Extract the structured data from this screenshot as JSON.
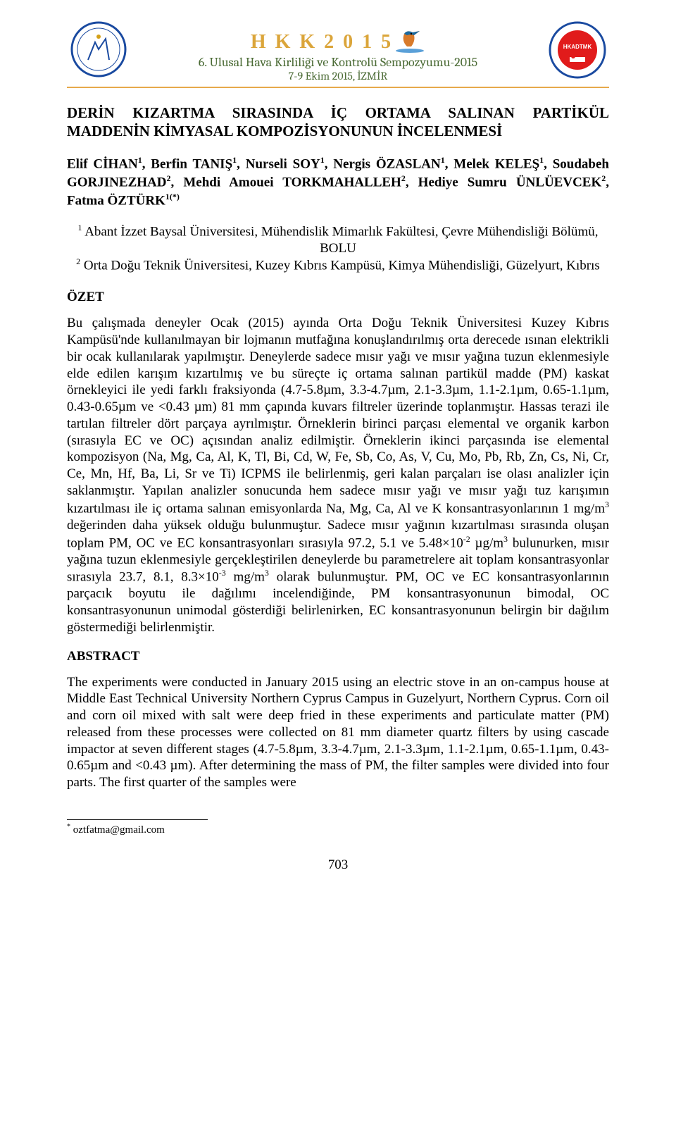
{
  "header": {
    "conf_code": "H K K 2 0 1 5",
    "conf_title": "6. Ulusal Hava Kirliliği ve Kontrolü Sempozyumu-2015",
    "conf_date": "7-9 Ekim 2015, İZMİR",
    "colors": {
      "accent_orange": "#dba53a",
      "accent_green": "#4a6a34",
      "rule_orange": "#e7a94b",
      "left_logo_ring": "#1a4aa0",
      "right_logo_ring_outer": "#1a4aa0",
      "right_logo_ring_inner": "#e11b1b"
    }
  },
  "paper": {
    "title": "DERİN KIZARTMA SIRASINDA İÇ ORTAMA SALINAN PARTİKÜL MADDENİN KİMYASAL KOMPOZİSYONUNUN İNCELENMESİ",
    "authors_html": "Elif CİHAN<sup>1</sup>, Berfin TANIŞ<sup>1</sup>, Nurseli SOY<sup>1</sup>, Nergis ÖZASLAN<sup>1</sup>, Melek KELEŞ<sup>1</sup>, Soudabeh GORJINEZHAD<sup>2</sup>, Mehdi Amouei TORKMAHALLEH<sup>2</sup>, Hediye Sumru ÜNLÜEVCEK<sup>2</sup>, Fatma ÖZTÜRK<sup>1(*)</sup>",
    "affils_html": "<sup>1</sup> Abant İzzet Baysal Üniversitesi, Mühendislik Mimarlık Fakültesi, Çevre Mühendisliği Bölümü, BOLU<br><sup>2</sup> Orta Doğu Teknik Üniversitesi, Kuzey Kıbrıs Kampüsü, Kimya Mühendisliği, Güzelyurt, Kıbrıs",
    "sec_ozet": "ÖZET",
    "ozet_html": "Bu çalışmada deneyler Ocak (2015) ayında Orta Doğu Teknik Üniversitesi Kuzey Kıbrıs Kampüsü'nde kullanılmayan bir lojmanın mutfağına konuşlandırılmış orta derecede ısınan elektrikli bir ocak kullanılarak yapılmıştır. Deneylerde sadece mısır yağı ve mısır yağına tuzun eklenmesiyle elde edilen karışım kızartılmış ve bu süreçte iç ortama salınan partikül madde (PM) kaskat örnekleyici ile yedi farklı fraksiyonda (4.7-5.8µm, 3.3-4.7µm, 2.1-3.3µm, 1.1-2.1µm, 0.65-1.1µm, 0.43-0.65µm ve &lt;0.43 µm) 81 mm çapında kuvars filtreler üzerinde toplanmıştır. Hassas terazi ile tartılan filtreler dört parçaya ayrılmıştır. Örneklerin birinci parçası elemental ve organik karbon (sırasıyla EC ve OC) açısından analiz edilmiştir. Örneklerin ikinci parçasında ise elemental kompozisyon (Na, Mg, Ca, Al, K, Tl, Bi, Cd, W, Fe, Sb, Co, As, V, Cu, Mo, Pb, Rb, Zn, Cs, Ni, Cr, Ce, Mn, Hf, Ba, Li, Sr ve Ti) ICPMS ile belirlenmiş, geri kalan parçaları ise olası analizler için saklanmıştır. Yapılan analizler sonucunda hem sadece mısır yağı ve mısır yağı tuz karışımın kızartılması ile iç ortama salınan emisyonlarda Na, Mg, Ca, Al ve K konsantrasyonlarının 1 mg/m<sup>3</sup> değerinden daha yüksek olduğu bulunmuştur. Sadece mısır yağının kızartılması sırasında oluşan toplam PM, OC ve EC konsantrasyonları sırasıyla 97.2, 5.1 ve 5.48×10<sup>-2</sup> µg/m<sup>3</sup> bulunurken, mısır yağına tuzun eklenmesiyle gerçekleştirilen deneylerde bu parametrelere ait toplam konsantrasyonlar sırasıyla 23.7, 8.1, 8.3×10<sup>-3</sup> mg/m<sup>3</sup> olarak bulunmuştur. PM, OC ve EC konsantrasyonlarının parçacık boyutu ile dağılımı incelendiğinde, PM konsantrasyonunun bimodal, OC konsantrasyonunun unimodal gösterdiği belirlenirken, EC konsantrasyonunun belirgin bir dağılım göstermediği belirlenmiştir.",
    "sec_abstract": "ABSTRACT",
    "abstract_html": "The experiments were conducted in January 2015 using an electric stove in an on-campus house at Middle East Technical University Northern Cyprus Campus in Guzelyurt, Northern Cyprus. Corn oil and corn oil mixed with salt were deep fried in these experiments and particulate matter (PM) released from these processes were collected on 81 mm diameter quartz filters by using cascade impactor at seven different stages (4.7-5.8µm, 3.3-4.7µm, 2.1-3.3µm, 1.1-2.1µm, 0.65-1.1µm, 0.43-0.65µm and &lt;0.43 µm). After determining the mass of PM, the filter samples were divided into four parts. The first quarter of the samples were",
    "footnote_html": "<sup>*</sup> oztfatma@gmail.com",
    "page_number": "703"
  }
}
